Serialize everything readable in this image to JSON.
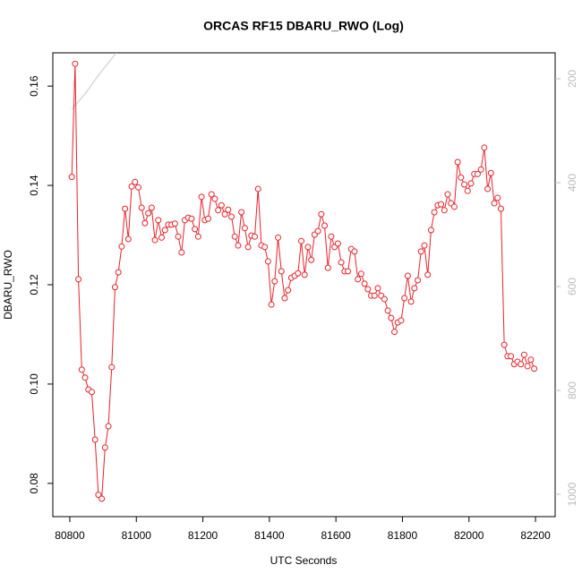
{
  "chart_data": {
    "type": "line",
    "title": "ORCAS RF15 DBARU_RWO (Log)",
    "xlabel": "UTC Seconds",
    "ylabel": "DBARU_RWO",
    "xlim": [
      80749,
      82259
    ],
    "xticks": [
      80800,
      81000,
      81200,
      81400,
      81600,
      81800,
      82000,
      82200
    ],
    "ylim": [
      0.0733,
      0.1667
    ],
    "yticks": [
      0.08,
      {
        "value": 0.1,
        "label": "0.10"
      },
      0.12,
      0.14,
      0.16
    ],
    "y2lim": [
      150,
      1043
    ],
    "y2_reversed": true,
    "y2ticks": [
      200,
      400,
      600,
      800,
      1000
    ],
    "series": [
      {
        "color": "#e8222a",
        "marker": "circle",
        "x": [
          80806,
          80816,
          80826,
          80836,
          80846,
          80856,
          80866,
          80876,
          80886,
          80896,
          80906,
          80916,
          80926,
          80936,
          80946,
          80956,
          80966,
          80976,
          80986,
          80996,
          81006,
          81016,
          81026,
          81036,
          81046,
          81056,
          81066,
          81076,
          81086,
          81096,
          81106,
          81116,
          81126,
          81136,
          81146,
          81156,
          81166,
          81176,
          81186,
          81196,
          81206,
          81216,
          81226,
          81236,
          81246,
          81256,
          81266,
          81276,
          81286,
          81296,
          81306,
          81316,
          81326,
          81336,
          81346,
          81356,
          81366,
          81376,
          81386,
          81396,
          81406,
          81416,
          81426,
          81436,
          81446,
          81456,
          81466,
          81476,
          81486,
          81496,
          81506,
          81516,
          81526,
          81536,
          81546,
          81556,
          81566,
          81576,
          81586,
          81596,
          81606,
          81616,
          81626,
          81636,
          81646,
          81656,
          81666,
          81676,
          81686,
          81696,
          81706,
          81716,
          81726,
          81736,
          81746,
          81756,
          81766,
          81776,
          81786,
          81796,
          81806,
          81816,
          81826,
          81836,
          81846,
          81856,
          81866,
          81876,
          81886,
          81896,
          81906,
          81916,
          81926,
          81936,
          81946,
          81956,
          81966,
          81976,
          81986,
          81996,
          82006,
          82016,
          82026,
          82036,
          82046,
          82056,
          82066,
          82076,
          82086,
          82096,
          82106,
          82116,
          82126,
          82136,
          82146,
          82156,
          82166,
          82176,
          82186,
          82196
        ],
        "values": [
          0.1417,
          0.1645,
          0.1211,
          0.1029,
          0.1013,
          0.0989,
          0.0984,
          0.0888,
          0.0777,
          0.0769,
          0.0872,
          0.0915,
          0.1034,
          0.1195,
          0.1225,
          0.1277,
          0.1353,
          0.1292,
          0.1398,
          0.1407,
          0.1396,
          0.1355,
          0.1324,
          0.1344,
          0.1355,
          0.129,
          0.133,
          0.1295,
          0.131,
          0.1321,
          0.1321,
          0.1323,
          0.1297,
          0.1265,
          0.133,
          0.1335,
          0.1333,
          0.1312,
          0.1297,
          0.1377,
          0.133,
          0.1333,
          0.1382,
          0.1373,
          0.135,
          0.136,
          0.1342,
          0.1351,
          0.1337,
          0.1297,
          0.1279,
          0.1346,
          0.1314,
          0.1276,
          0.1299,
          0.1297,
          0.1393,
          0.1279,
          0.1276,
          0.1247,
          0.116,
          0.1207,
          0.1295,
          0.1227,
          0.1173,
          0.1189,
          0.1214,
          0.1218,
          0.1223,
          0.1288,
          0.122,
          0.1276,
          0.125,
          0.1301,
          0.1308,
          0.1342,
          0.1319,
          0.1234,
          0.1297,
          0.1276,
          0.1283,
          0.1245,
          0.1227,
          0.1227,
          0.1272,
          0.1267,
          0.1211,
          0.1222,
          0.1202,
          0.1191,
          0.1178,
          0.1178,
          0.1193,
          0.1178,
          0.1171,
          0.1148,
          0.1133,
          0.1105,
          0.1124,
          0.1128,
          0.1173,
          0.1218,
          0.1166,
          0.1193,
          0.1209,
          0.1267,
          0.1279,
          0.122,
          0.131,
          0.1346,
          0.136,
          0.1362,
          0.135,
          0.1382,
          0.1364,
          0.1357,
          0.1447,
          0.1416,
          0.1402,
          0.1389,
          0.1404,
          0.1423,
          0.1423,
          0.1432,
          0.1476,
          0.1393,
          0.1425,
          0.1364,
          0.1375,
          0.1353,
          0.1079,
          0.1056,
          0.1056,
          0.104,
          0.1045,
          0.104,
          0.1059,
          0.1036,
          0.1049,
          0.1031
        ]
      },
      {
        "color": "#c8c8c8",
        "axis": "y2",
        "x": [
          80806,
          80846,
          80890,
          80940
        ],
        "values": [
          259,
          229,
          190,
          150
        ]
      }
    ]
  }
}
